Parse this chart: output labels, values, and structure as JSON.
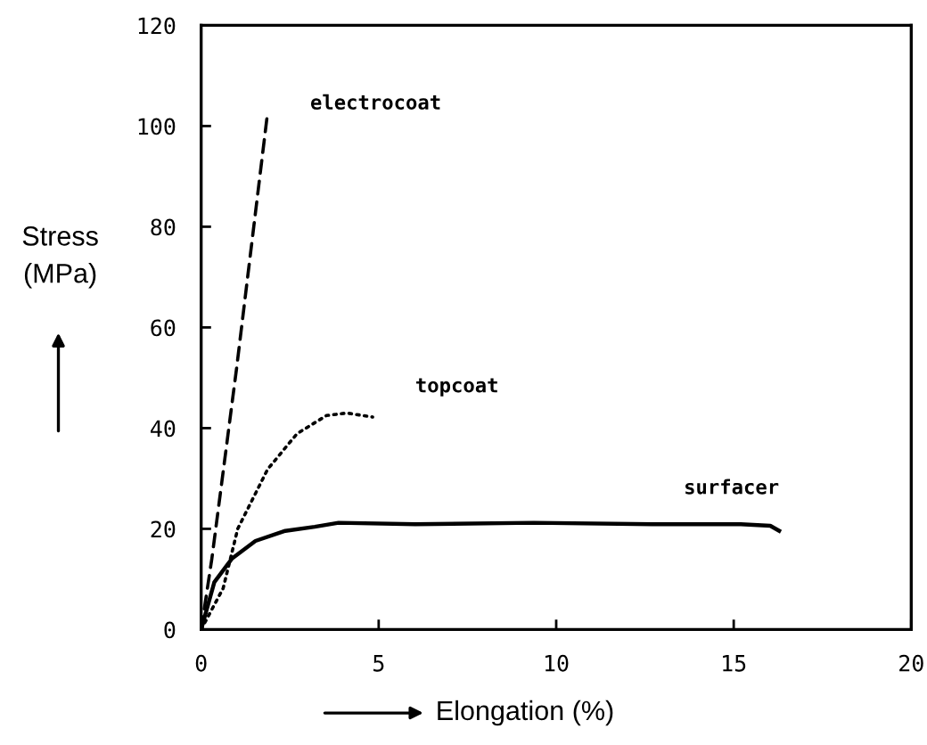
{
  "chart_data": {
    "type": "line",
    "xlabel": "Elongation (%)",
    "ylabel": "Stress\n(MPa)",
    "xlim": [
      0,
      20
    ],
    "xticks": [
      0,
      5,
      10,
      15,
      20
    ],
    "ylim": [
      0,
      120
    ],
    "yticks": [
      0,
      20,
      40,
      60,
      80,
      100,
      120
    ],
    "grid": false,
    "legend": false,
    "marker": "none",
    "series": [
      {
        "name": "electrocoat",
        "color": "#000000",
        "line_style": "dashed",
        "x": [
          0,
          0.3,
          1.0,
          1.87
        ],
        "values": [
          0,
          14,
          52,
          102.6
        ]
      },
      {
        "name": "topcoat",
        "color": "#000000",
        "line_style": "dotted",
        "x": [
          0,
          0.62,
          1.03,
          1.87,
          2.7,
          3.53,
          4.1,
          4.83
        ],
        "values": [
          0,
          8.2,
          20,
          31.8,
          38.9,
          42.5,
          43,
          42.2
        ]
      },
      {
        "name": "surfacer",
        "color": "#000000",
        "line_style": "solid",
        "x": [
          0,
          0.37,
          0.87,
          1.53,
          2.37,
          3.2,
          3.87,
          6.03,
          9.37,
          12.7,
          15.2,
          16.03,
          16.28
        ],
        "values": [
          0,
          9.4,
          14.1,
          17.6,
          19.6,
          20.4,
          21.2,
          20.9,
          21.2,
          20.9,
          20.9,
          20.6,
          19.6
        ]
      }
    ]
  }
}
